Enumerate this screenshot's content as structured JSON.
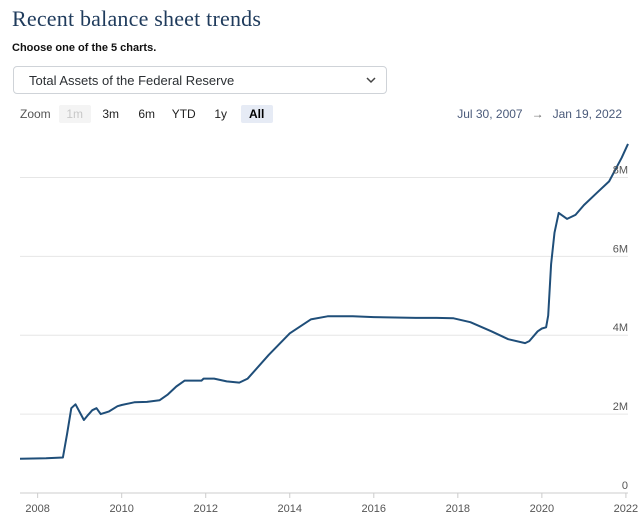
{
  "header": {
    "title": "Recent balance sheet trends",
    "subtitle": "Choose one of the 5 charts."
  },
  "selector": {
    "selected": "Total Assets of the Federal Reserve",
    "icon": "chevron-down-icon"
  },
  "zoom": {
    "label": "Zoom",
    "buttons": [
      {
        "label": "1m",
        "state": "disabled"
      },
      {
        "label": "3m",
        "state": "normal"
      },
      {
        "label": "6m",
        "state": "normal"
      },
      {
        "label": "YTD",
        "state": "normal"
      },
      {
        "label": "1y",
        "state": "normal"
      },
      {
        "label": "All",
        "state": "active"
      }
    ]
  },
  "range": {
    "from": "Jul 30, 2007",
    "arrow": "→",
    "to": "Jan 19, 2022"
  },
  "colors": {
    "series": "#1f4e79",
    "title": "#1f3b5c"
  },
  "chart_data": {
    "type": "line",
    "title": "",
    "xlabel": "",
    "ylabel": "",
    "xlim": [
      2007.58,
      2022.05
    ],
    "ylim": [
      0,
      9000000
    ],
    "grid": true,
    "x_ticks": [
      "2008",
      "2010",
      "2012",
      "2014",
      "2016",
      "2018",
      "2020",
      "2022"
    ],
    "y_ticks": [
      "0",
      "2M",
      "4M",
      "6M",
      "8M"
    ],
    "series": [
      {
        "name": "",
        "x": [
          2007.58,
          2008.2,
          2008.6,
          2008.7,
          2008.8,
          2008.9,
          2009.0,
          2009.1,
          2009.2,
          2009.3,
          2009.4,
          2009.5,
          2009.7,
          2009.9,
          2010.0,
          2010.3,
          2010.6,
          2010.9,
          2011.1,
          2011.3,
          2011.5,
          2011.9,
          2011.95,
          2012.2,
          2012.5,
          2012.8,
          2013.0,
          2013.5,
          2014.0,
          2014.5,
          2014.9,
          2015.5,
          2016.0,
          2016.5,
          2017.0,
          2017.5,
          2017.9,
          2018.3,
          2018.8,
          2019.2,
          2019.6,
          2019.7,
          2019.9,
          2020.0,
          2020.1,
          2020.15,
          2020.22,
          2020.3,
          2020.4,
          2020.6,
          2020.8,
          2021.0,
          2021.3,
          2021.6,
          2021.9,
          2022.05
        ],
        "values": [
          870000,
          880000,
          900000,
          1500000,
          2150000,
          2250000,
          2050000,
          1850000,
          1980000,
          2100000,
          2150000,
          2000000,
          2070000,
          2200000,
          2230000,
          2300000,
          2310000,
          2350000,
          2500000,
          2700000,
          2850000,
          2850000,
          2900000,
          2900000,
          2830000,
          2800000,
          2900000,
          3500000,
          4050000,
          4400000,
          4480000,
          4480000,
          4460000,
          4450000,
          4440000,
          4440000,
          4430000,
          4330000,
          4100000,
          3900000,
          3800000,
          3850000,
          4100000,
          4170000,
          4200000,
          4500000,
          5800000,
          6600000,
          7100000,
          6950000,
          7050000,
          7300000,
          7600000,
          7900000,
          8500000,
          8850000
        ]
      }
    ]
  }
}
